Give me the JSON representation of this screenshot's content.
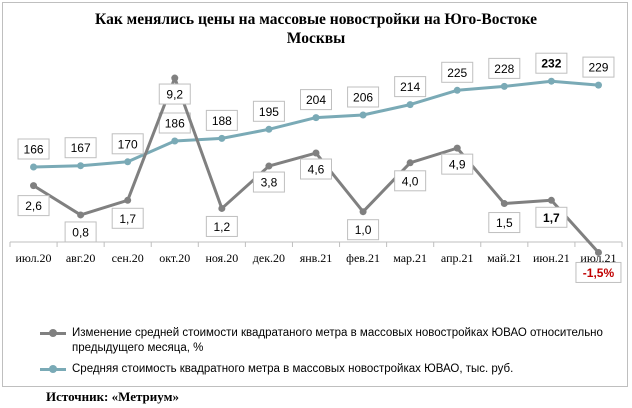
{
  "chart_data": {
    "type": "line",
    "title": "Как менялись цены на массовые новостройки  на Юго-Востоке Москвы",
    "title_lines": [
      "Как менялись цены на массовые новостройки  на Юго-Востоке",
      "Москвы"
    ],
    "categories": [
      "июл.20",
      "авг.20",
      "сен.20",
      "окт.20",
      "ноя.20",
      "дек.20",
      "янв.21",
      "фев.21",
      "мар.21",
      "апр.21",
      "май.21",
      "июн.21",
      "июл.21"
    ],
    "series": [
      {
        "name": "Изменение  средней стоимости квадратаного метра в массовых новостройках ЮВАО относительно предыдущего месяца, %",
        "name_lines": [
          "Изменение  средней стоимости квадратаного метра в массовых новостройках ЮВАО относительно",
          "предыдущего месяца, %"
        ],
        "values": [
          2.6,
          0.8,
          1.7,
          9.2,
          1.2,
          3.8,
          4.6,
          1.0,
          4.0,
          4.9,
          1.5,
          1.7,
          -1.5
        ],
        "labels": [
          "2,6",
          "0,8",
          "1,7",
          "9,2",
          "1,2",
          "3,8",
          "4,6",
          "1,0",
          "4,0",
          "4,9",
          "1,5",
          "1,7",
          "-1,5%"
        ],
        "color": "#808080"
      },
      {
        "name": "Средняя стоимость квадратного метра в массовых новостройках ЮВАО, тыс. руб.",
        "values": [
          166,
          167,
          170,
          186,
          188,
          195,
          204,
          206,
          214,
          225,
          228,
          232,
          229
        ],
        "labels": [
          "166",
          "167",
          "170",
          "186",
          "188",
          "195",
          "204",
          "206",
          "214",
          "225",
          "228",
          "232",
          "229"
        ],
        "color": "#7aaab6"
      }
    ],
    "negative_label_color": "#c00000",
    "grid": false,
    "legend_position": "bottom"
  },
  "source": "Источник: «Метриум»"
}
